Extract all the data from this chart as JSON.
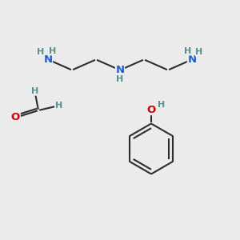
{
  "background_color": "#ebebeb",
  "bond_color": "#2d2d2d",
  "nitrogen_color": "#1f5fc8",
  "oxygen_color": "#cc0000",
  "hydrogen_color": "#5a8f8f",
  "line_width": 1.5,
  "font_size_N": 9.5,
  "font_size_O": 9.5,
  "font_size_H": 8.0,
  "xlim": [
    0,
    10
  ],
  "ylim": [
    0,
    10
  ]
}
